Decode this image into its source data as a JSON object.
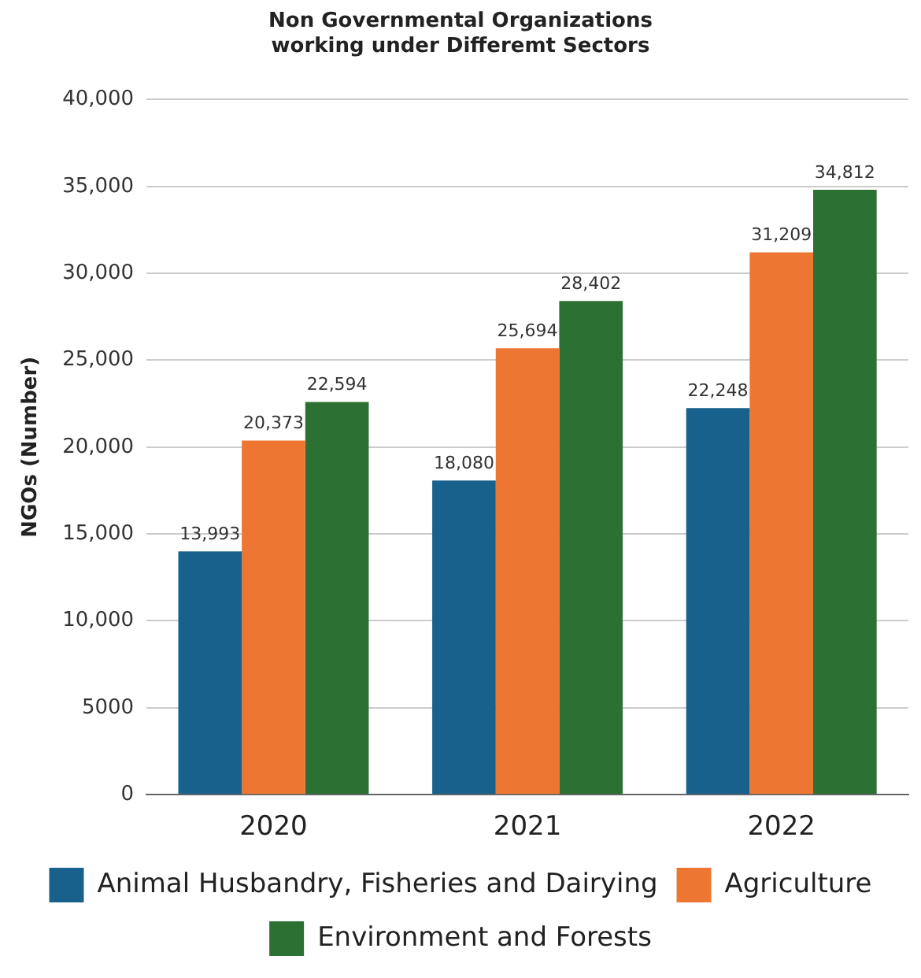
{
  "chart_data": {
    "type": "bar",
    "title": "Non Governmental Organizations working under Differemt Sectors",
    "ylabel": "NGOs (Number)",
    "categories": [
      "2020",
      "2021",
      "2022"
    ],
    "series": [
      {
        "name": "Animal Husbandry, Fisheries and Dairying",
        "color": "#17618c",
        "values": [
          13993,
          18080,
          22248
        ],
        "value_labels": [
          "13,993",
          "18,080",
          "22,248"
        ]
      },
      {
        "name": "Agriculture",
        "color": "#ed7633",
        "values": [
          20373,
          25694,
          31209
        ],
        "value_labels": [
          "20,373",
          "25,694",
          "31,209"
        ]
      },
      {
        "name": "Environment and Forests",
        "color": "#2c7034",
        "values": [
          22594,
          28402,
          34812
        ],
        "value_labels": [
          "22,594",
          "28,402",
          "34,812"
        ]
      }
    ],
    "ylim": [
      0,
      40000
    ],
    "yticks": [
      0,
      5000,
      {
        "value": 10000,
        "label": "10,000"
      },
      {
        "value": 15000,
        "label": "15,000"
      },
      {
        "value": 20000,
        "label": "20,000"
      },
      {
        "value": 25000,
        "label": "25,000"
      },
      {
        "value": 30000,
        "label": "30,000"
      },
      {
        "value": 35000,
        "label": "35,000"
      },
      {
        "value": 40000,
        "label": "40,000"
      }
    ],
    "grid": "y",
    "legend": "bottom"
  }
}
